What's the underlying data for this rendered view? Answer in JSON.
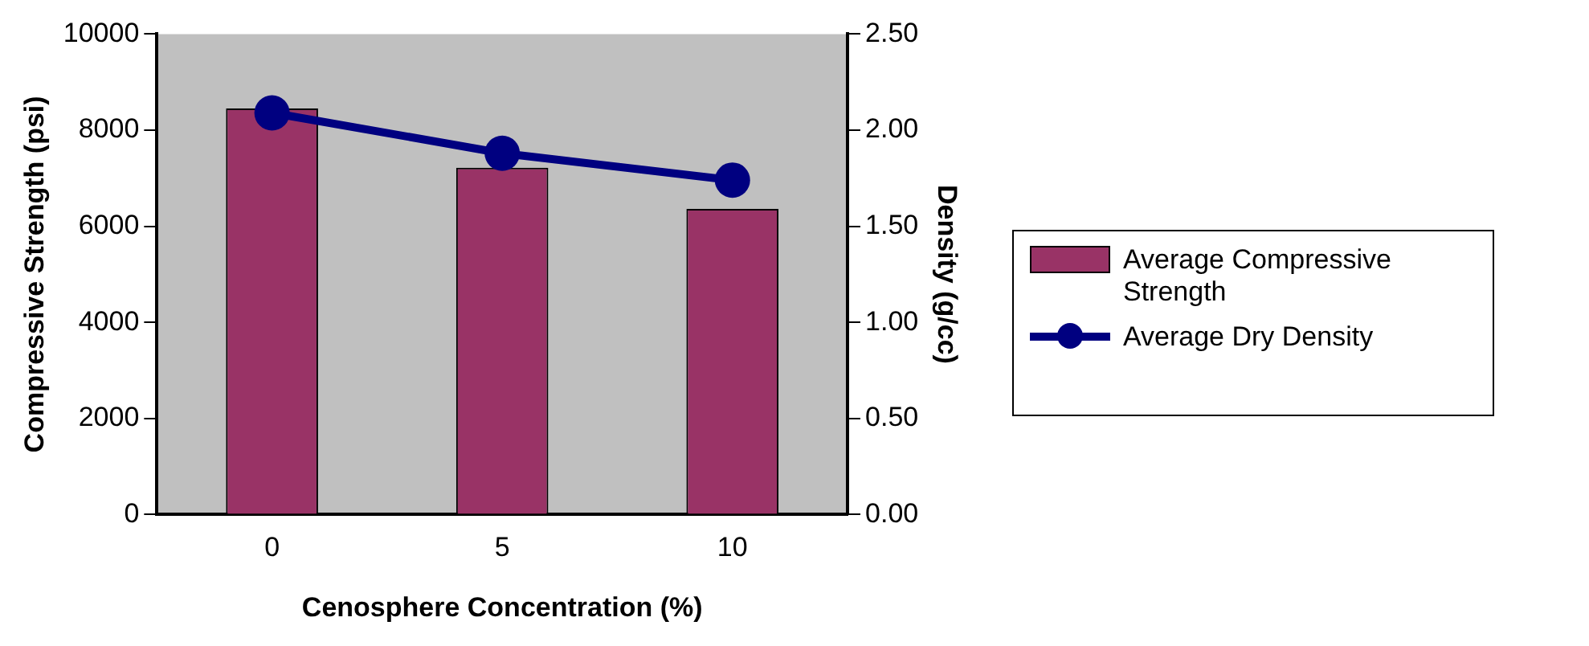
{
  "chart_data": {
    "type": "bar",
    "categories": [
      "0",
      "5",
      "10"
    ],
    "xlabel": "Cenosphere Concentration (%)",
    "ylabel": "Compressive Strength (psi)",
    "y2label": "Density (g/cc)",
    "series": [
      {
        "name": "Average Compressive Strength",
        "color": "#993366",
        "values": [
          8450,
          7220,
          6360
        ]
      },
      {
        "name": "Average Dry Density",
        "type": "line",
        "axis": "y2",
        "color": "#000080",
        "values": [
          2.09,
          1.88,
          1.74
        ]
      }
    ],
    "ylim": [
      0,
      10000
    ],
    "yticks": [
      0,
      2000,
      4000,
      6000,
      8000,
      10000
    ],
    "y2lim": [
      0,
      2.5
    ],
    "y2ticks": [
      {
        "value": 0,
        "label": "0.00"
      },
      {
        "value": 0.5,
        "label": "0.50"
      },
      {
        "value": 1,
        "label": "1.00"
      },
      {
        "value": 1.5,
        "label": "1.50"
      },
      {
        "value": 2,
        "label": "2.00"
      },
      {
        "value": 2.5,
        "label": "2.50"
      }
    ],
    "legend": "right",
    "marker": "circle",
    "grid": false
  }
}
